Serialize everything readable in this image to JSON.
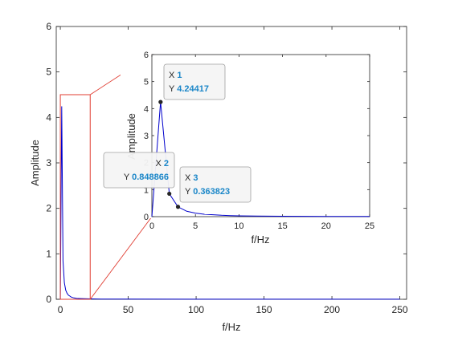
{
  "chart_data": [
    {
      "type": "line",
      "xlabel": "f/Hz",
      "ylabel": "Amplitude",
      "xlim": [
        -3,
        255
      ],
      "ylim": [
        0,
        6
      ],
      "xticks": [
        "0",
        "50",
        "100",
        "150",
        "200",
        "250"
      ],
      "yticks": [
        "0",
        "1",
        "2",
        "3",
        "4",
        "5",
        "6"
      ],
      "grid": false,
      "series": [
        {
          "color": "#0000cc",
          "x": [
            0,
            1,
            2,
            3,
            4,
            5,
            6,
            7,
            8,
            10,
            12,
            15,
            20,
            30,
            50,
            100,
            150,
            200,
            250
          ],
          "y": [
            0.0,
            4.24417,
            0.848866,
            0.363823,
            0.2,
            0.13,
            0.09,
            0.07,
            0.05,
            0.03,
            0.02,
            0.015,
            0.01,
            0.006,
            0.004,
            0.002,
            0.0015,
            0.001,
            0.001
          ]
        }
      ],
      "zoom_box": {
        "x": [
          0,
          22
        ],
        "y": [
          0,
          4.5
        ],
        "color": "#e03c31"
      }
    },
    {
      "type": "line",
      "xlabel": "f/Hz",
      "ylabel": "Amplitude",
      "xlim": [
        0,
        25
      ],
      "ylim": [
        0,
        6
      ],
      "xticks": [
        "0",
        "5",
        "10",
        "15",
        "20",
        "25"
      ],
      "yticks": [
        "0",
        "1",
        "2",
        "3",
        "4",
        "5",
        "6"
      ],
      "grid": false,
      "series": [
        {
          "color": "#0000cc",
          "x": [
            0,
            1,
            2,
            3,
            4,
            5,
            6,
            7,
            8,
            9,
            10,
            12,
            15,
            20,
            25
          ],
          "y": [
            0.0,
            4.24417,
            0.848866,
            0.363823,
            0.2,
            0.13,
            0.09,
            0.07,
            0.05,
            0.04,
            0.03,
            0.02,
            0.015,
            0.01,
            0.008
          ]
        }
      ],
      "datatips": [
        {
          "x_label": "X",
          "x_value": "1",
          "y_label": "Y",
          "y_value": "4.24417",
          "x": 1,
          "y": 4.24417
        },
        {
          "x_label": "X",
          "x_value": "2",
          "y_label": "Y",
          "y_value": "0.848866",
          "x": 2,
          "y": 0.848866
        },
        {
          "x_label": "X",
          "x_value": "3",
          "y_label": "Y",
          "y_value": "0.363823",
          "x": 3,
          "y": 0.363823
        }
      ]
    }
  ]
}
